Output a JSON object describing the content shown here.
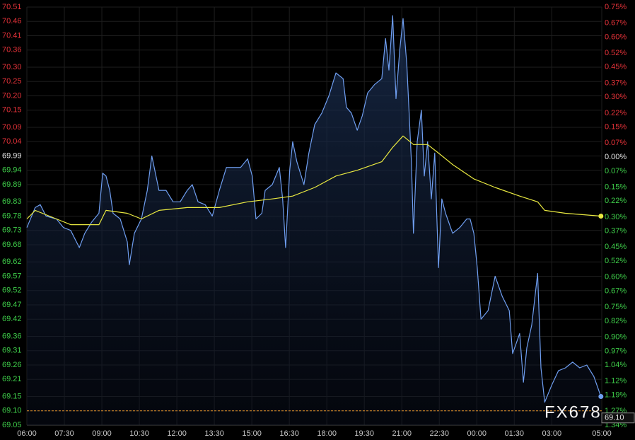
{
  "chart_data": {
    "type": "line",
    "watermark": "FX678",
    "xticks": [
      "06:00",
      "07:30",
      "09:00",
      "10:30",
      "12:00",
      "13:30",
      "15:00",
      "16:30",
      "18:00",
      "19:30",
      "21:00",
      "22:30",
      "00:00",
      "01:30",
      "03:00",
      "05:00"
    ],
    "xlim": [
      "06:00",
      "05:00"
    ],
    "ylim": [
      69.05,
      70.51
    ],
    "yticks": [
      70.51,
      70.46,
      70.41,
      70.36,
      {
        "value": 70.3,
        "label": "70.30"
      },
      70.25,
      {
        "value": 70.2,
        "label": "70.20"
      },
      70.15,
      70.09,
      70.04,
      69.99,
      69.94,
      69.89,
      69.83,
      69.78,
      69.73,
      69.68,
      69.62,
      69.57,
      69.52,
      69.47,
      69.42,
      69.36,
      69.31,
      69.26,
      69.21,
      69.15,
      {
        "value": 69.1,
        "label": "69.10"
      },
      69.05
    ],
    "y2lim": [
      -1.34,
      0.75
    ],
    "y2ticks": [
      {
        "value": 0.75,
        "label": "0.75%"
      },
      {
        "value": 0.67,
        "label": "0.67%"
      },
      {
        "value": 0.6,
        "label": "0.60%"
      },
      {
        "value": 0.52,
        "label": "0.52%"
      },
      {
        "value": 0.45,
        "label": "0.45%"
      },
      {
        "value": 0.37,
        "label": "0.37%"
      },
      {
        "value": 0.3,
        "label": "0.30%"
      },
      {
        "value": 0.22,
        "label": "0.22%"
      },
      {
        "value": 0.15,
        "label": "0.15%"
      },
      {
        "value": 0.07,
        "label": "0.07%"
      },
      {
        "value": 0,
        "label": "0.00%"
      },
      {
        "value": -0.07,
        "label": "0.07%"
      },
      {
        "value": -0.15,
        "label": "0.15%"
      },
      {
        "value": -0.22,
        "label": "0.22%"
      },
      {
        "value": -0.3,
        "label": "0.30%"
      },
      {
        "value": -0.37,
        "label": "0.37%"
      },
      {
        "value": -0.45,
        "label": "0.45%"
      },
      {
        "value": -0.52,
        "label": "0.52%"
      },
      {
        "value": -0.6,
        "label": "0.60%"
      },
      {
        "value": -0.67,
        "label": "0.67%"
      },
      {
        "value": -0.75,
        "label": "0.75%"
      },
      {
        "value": -0.82,
        "label": "0.82%"
      },
      {
        "value": -0.9,
        "label": "0.90%"
      },
      {
        "value": -0.97,
        "label": "0.97%"
      },
      {
        "value": -1.04,
        "label": "1.04%"
      },
      {
        "value": -1.12,
        "label": "1.12%"
      },
      {
        "value": -1.19,
        "label": "1.19%"
      },
      {
        "value": -1.27,
        "label": "1.27%"
      },
      {
        "value": -1.34,
        "label": "1.34%"
      }
    ],
    "grid": true,
    "reference_line": {
      "value": 69.1,
      "label": "69.10",
      "color": "#e0902a"
    },
    "series": [
      {
        "color": "#6f9ef0",
        "area": true,
        "x": [
          "06:00",
          "06:20",
          "06:32",
          "06:46",
          "07:11",
          "07:28",
          "07:45",
          "08:06",
          "08:19",
          "08:36",
          "08:53",
          "09:02",
          "09:10",
          "09:19",
          "09:27",
          "09:44",
          "10:01",
          "10:06",
          "10:18",
          "10:35",
          "10:49",
          "11:00",
          "11:17",
          "11:34",
          "11:51",
          "12:08",
          "12:25",
          "12:37",
          "12:51",
          "13:08",
          "13:25",
          "13:42",
          "13:59",
          "14:16",
          "14:33",
          "14:50",
          "15:01",
          "15:10",
          "15:24",
          "15:32",
          "15:49",
          "16:06",
          "16:14",
          "16:21",
          "16:31",
          "16:38",
          "16:48",
          "17:05",
          "17:17",
          "17:31",
          "17:48",
          "18:05",
          "18:22",
          "18:39",
          "18:47",
          "18:59",
          "19:13",
          "19:25",
          "19:38",
          "19:55",
          "20:12",
          "20:21",
          "20:29",
          "20:38",
          "20:46",
          "20:55",
          "21:03",
          "21:12",
          "21:17",
          "21:23",
          "21:28",
          "21:37",
          "21:47",
          "21:54",
          "22:02",
          "22:11",
          "22:19",
          "22:28",
          "22:36",
          "22:45",
          "23:02",
          "23:19",
          "23:36",
          "23:44",
          "23:53",
          "00:01",
          "00:10",
          "00:27",
          "00:44",
          "01:01",
          "01:18",
          "01:26",
          "01:43",
          "01:52",
          "02:00",
          "02:12",
          "02:26",
          "02:34",
          "02:43",
          "03:00",
          "03:16",
          "03:33",
          "03:50",
          "04:07",
          "04:24",
          "04:41",
          "04:58"
        ],
        "values": [
          69.74,
          69.81,
          69.82,
          69.78,
          69.77,
          69.74,
          69.73,
          69.67,
          69.72,
          69.76,
          69.79,
          69.93,
          69.92,
          69.87,
          69.79,
          69.77,
          69.69,
          69.61,
          69.72,
          69.77,
          69.87,
          69.99,
          69.87,
          69.87,
          69.83,
          69.83,
          69.87,
          69.89,
          69.83,
          69.82,
          69.78,
          69.87,
          69.95,
          69.95,
          69.95,
          69.98,
          69.92,
          69.77,
          69.79,
          69.87,
          69.89,
          69.95,
          69.84,
          69.67,
          69.94,
          70.04,
          69.97,
          69.89,
          70.0,
          70.1,
          70.14,
          70.2,
          70.28,
          70.26,
          70.16,
          70.14,
          70.08,
          70.13,
          70.21,
          70.24,
          70.26,
          70.4,
          70.29,
          70.48,
          70.19,
          70.36,
          70.47,
          70.31,
          70.16,
          69.97,
          69.72,
          70.04,
          70.15,
          69.92,
          70.04,
          69.84,
          70.0,
          69.6,
          69.84,
          69.79,
          69.72,
          69.74,
          69.77,
          69.77,
          69.72,
          69.6,
          69.42,
          69.45,
          69.57,
          69.5,
          69.45,
          69.3,
          69.37,
          69.2,
          69.32,
          69.4,
          69.58,
          69.25,
          69.13,
          69.19,
          69.24,
          69.25,
          69.27,
          69.25,
          69.26,
          69.22,
          69.15
        ]
      },
      {
        "color": "#e8e840",
        "area": false,
        "x": [
          "06:00",
          "06:20",
          "07:11",
          "07:45",
          "08:53",
          "09:10",
          "10:01",
          "10:35",
          "11:17",
          "12:25",
          "13:42",
          "14:50",
          "15:49",
          "16:38",
          "17:31",
          "18:22",
          "19:13",
          "20:12",
          "20:38",
          "21:03",
          "21:28",
          "22:02",
          "22:28",
          "23:02",
          "23:53",
          "00:44",
          "01:43",
          "02:26",
          "02:43",
          "03:33",
          "04:58"
        ],
        "values": [
          69.77,
          69.8,
          69.77,
          69.75,
          69.75,
          69.8,
          69.79,
          69.77,
          69.8,
          69.81,
          69.81,
          69.83,
          69.84,
          69.85,
          69.88,
          69.92,
          69.94,
          69.97,
          70.02,
          70.06,
          70.03,
          70.03,
          70.0,
          69.96,
          69.91,
          69.88,
          69.85,
          69.83,
          69.8,
          69.79,
          69.78
        ]
      }
    ]
  }
}
